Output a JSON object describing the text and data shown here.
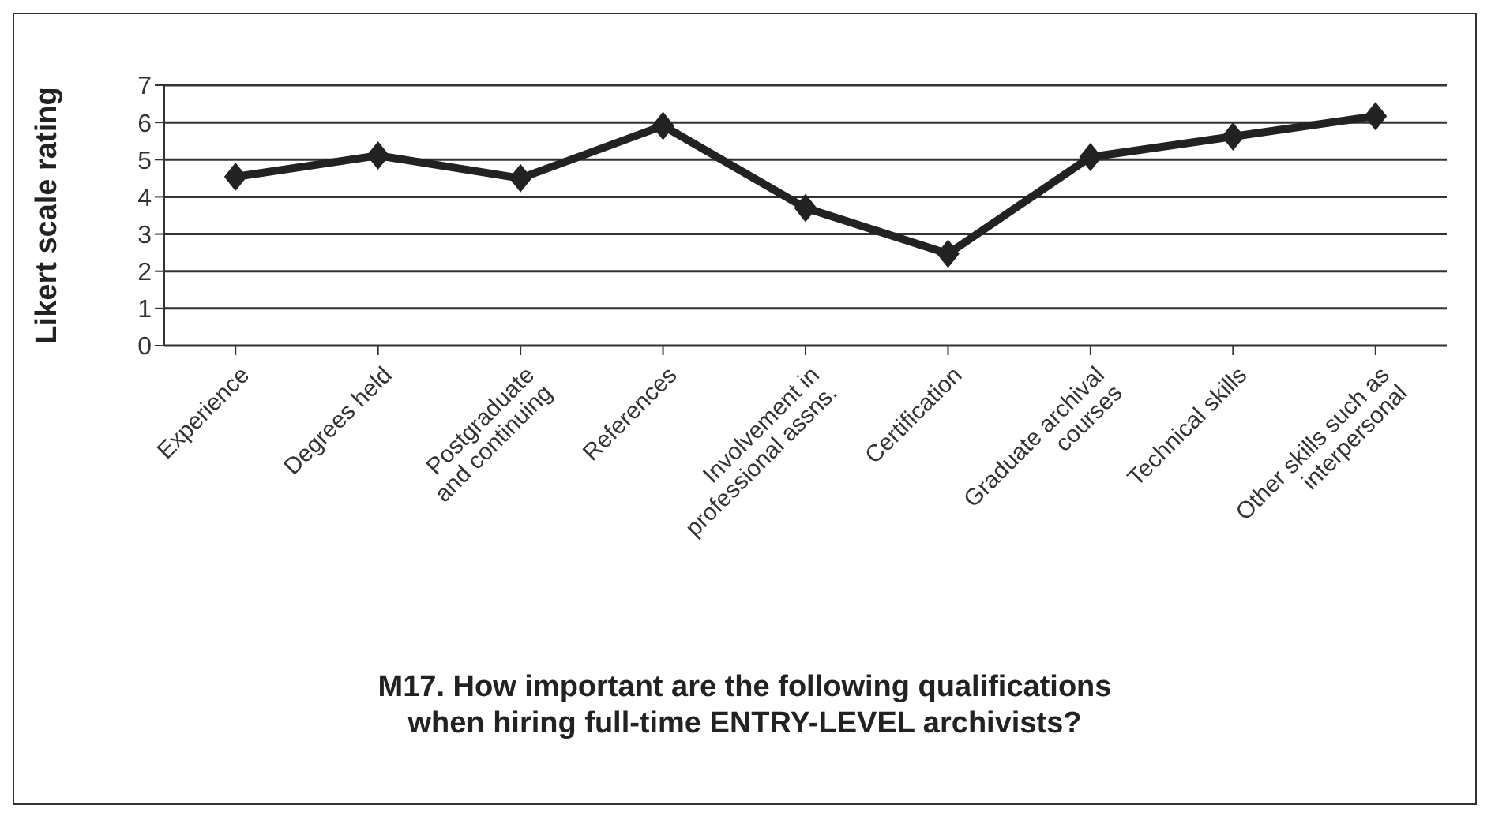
{
  "chart_data": {
    "type": "line",
    "title": "M17. How important are the following qualifications\nwhen hiring full-time ENTRY-LEVEL archivists?",
    "ylabel": "Likert scale rating",
    "categories": [
      "Experience",
      "Degrees held",
      "Postgraduate\nand continuing",
      "References",
      "Involvement in\nprofessional assns.",
      "Certification",
      "Graduate archival\ncourses",
      "Technical skills",
      "Other skills such as\ninterpersonal"
    ],
    "series": [
      {
        "color": "#222222",
        "values": [
          4.54,
          5.11,
          4.5,
          5.91,
          3.7,
          2.47,
          5.07,
          5.62,
          6.17
        ]
      }
    ],
    "ylim": [
      0,
      7
    ],
    "yticks": [
      0,
      1,
      2,
      3,
      4,
      5,
      6,
      7
    ],
    "grid": "y",
    "marker": "diamond",
    "line_style": "solid",
    "legend": false
  }
}
